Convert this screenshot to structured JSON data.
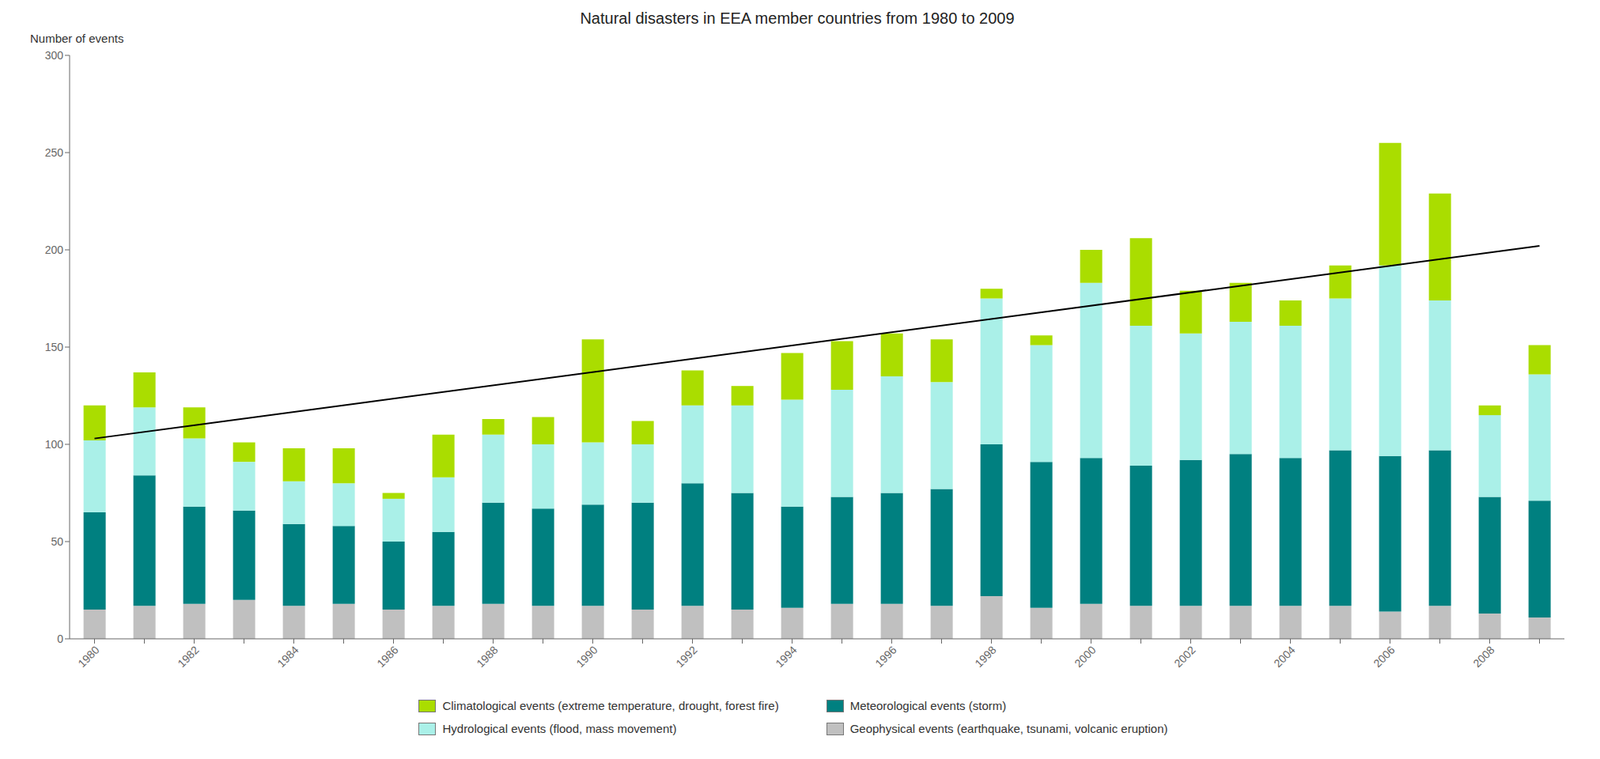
{
  "chart_data": {
    "type": "bar",
    "title": "Natural disasters in EEA member countries from 1980 to 2009",
    "y_label": "Number of events",
    "stacked": true,
    "grid": false,
    "categories": [
      "1980",
      null,
      "1982",
      null,
      "1984",
      null,
      "1986",
      null,
      "1988",
      null,
      "1990",
      null,
      "1992",
      null,
      "1994",
      null,
      "1996",
      null,
      "1998",
      null,
      "2000",
      null,
      "2002",
      null,
      "2004",
      null,
      "2006",
      null,
      "2008",
      null
    ],
    "series": [
      {
        "name": "Geophysical events (earthquake, tsunami, volcanic eruption)",
        "color": "#c0c0c0",
        "values": [
          15,
          17,
          18,
          20,
          17,
          18,
          15,
          17,
          18,
          17,
          17,
          15,
          17,
          15,
          16,
          18,
          18,
          17,
          22,
          16,
          18,
          17,
          17,
          17,
          17,
          17,
          14,
          17,
          13,
          11
        ]
      },
      {
        "name": "Meteorological events (storm)",
        "color": "#008080",
        "values": [
          50,
          67,
          50,
          46,
          42,
          40,
          35,
          38,
          52,
          50,
          52,
          55,
          63,
          60,
          52,
          55,
          57,
          60,
          78,
          75,
          75,
          72,
          75,
          78,
          76,
          80,
          80,
          80,
          60,
          60
        ]
      },
      {
        "name": "Hydrological events (flood, mass movement)",
        "color": "#aaf0e8",
        "values": [
          37,
          35,
          35,
          25,
          22,
          22,
          22,
          28,
          35,
          33,
          32,
          30,
          40,
          45,
          55,
          55,
          60,
          55,
          75,
          60,
          90,
          72,
          65,
          68,
          68,
          78,
          98,
          77,
          42,
          65
        ]
      },
      {
        "name": "Climatological events (extreme temperature, drought, forest fire)",
        "color": "#aadd00",
        "values": [
          18,
          18,
          16,
          10,
          17,
          18,
          3,
          22,
          8,
          14,
          53,
          12,
          18,
          10,
          24,
          25,
          22,
          22,
          5,
          5,
          17,
          45,
          22,
          20,
          13,
          17,
          63,
          55,
          5,
          15
        ]
      }
    ],
    "trend": {
      "start": 103,
      "end": 202,
      "color": "#000000"
    },
    "ylim": [
      0,
      300
    ],
    "yticks": [
      0,
      50,
      100,
      150,
      200,
      250,
      300
    ]
  }
}
